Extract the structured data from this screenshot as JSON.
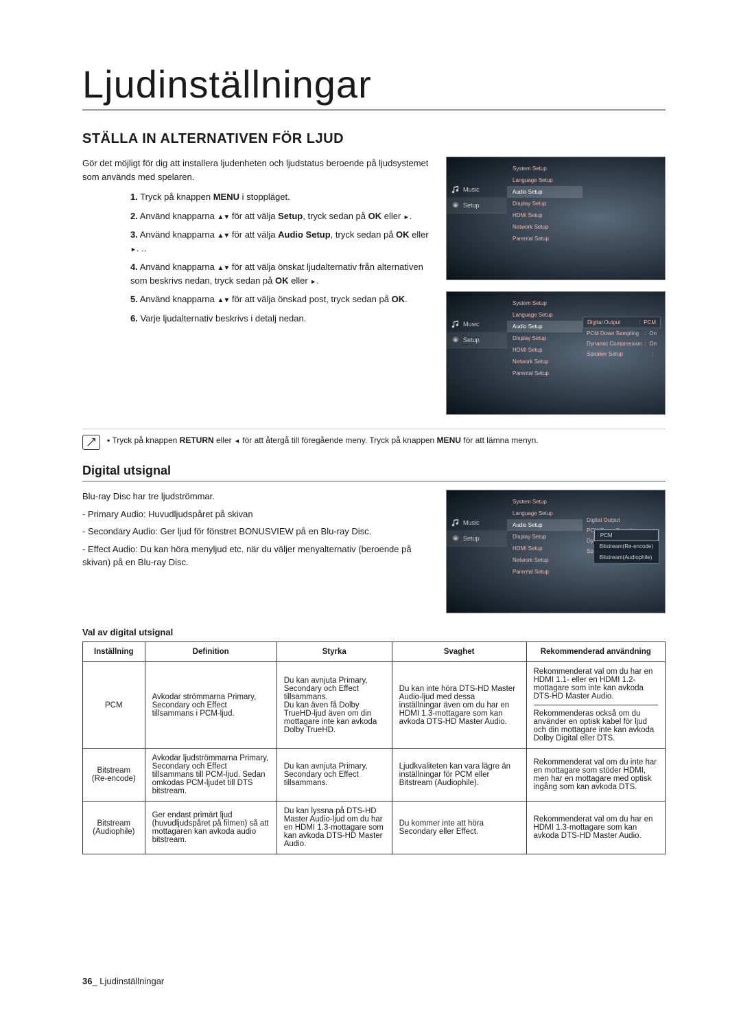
{
  "page": {
    "title": "Ljudinställningar",
    "section_header": "STÄLLA IN ALTERNATIVEN FÖR LJUD",
    "intro": "Gör det möjligt för dig att installera ljudenheten och ljudstatus beroende på ljudsystemet som används med spelaren.",
    "steps": [
      {
        "n": "1.",
        "a": "Tryck på knappen ",
        "b": "MENU",
        "c": " i stoppläget."
      },
      {
        "n": "2.",
        "a": "Använd knapparna ",
        "mid": " för att välja ",
        "b": "Setup",
        "c": ", tryck sedan på ",
        "d": "OK",
        "e": " eller "
      },
      {
        "n": "3.",
        "a": "Använd knapparna ",
        "mid": " för att välja ",
        "b": "Audio Setup",
        "c": ", tryck sedan på ",
        "d": "OK",
        "e": " eller ",
        "tail": " .."
      },
      {
        "n": "4.",
        "a": "Använd knapparna ",
        "mid": " för att välja önskat ljudalternativ från alternativen som beskrivs nedan, tryck sedan på ",
        "d": "OK",
        "e": " eller "
      },
      {
        "n": "5.",
        "a": "Använd knapparna ",
        "mid": " för att välja önskad post, tryck sedan på ",
        "d": "OK",
        "e": "."
      },
      {
        "n": "6.",
        "a": "Varje ljudalternativ beskrivs i detalj nedan."
      }
    ],
    "note": {
      "prefix": "Tryck på knappen ",
      "return": "RETURN",
      "mid": " eller ",
      "rest": " för att återgå till föregående meny. Tryck på knappen ",
      "menu": "MENU",
      "end": " för att lämna menyn."
    },
    "subheading": "Digital utsignal",
    "digital_intro": "Blu-ray Disc har tre ljudströmmar.",
    "digital_items": [
      "- Primary Audio: Huvudljudspåret på skivan",
      "- Secondary Audio: Ger ljud för fönstret BONUSVIEW på en Blu-ray Disc.",
      "- Effect Audio: Du kan höra menyljud etc. när du väljer menyalternativ (beroende på skivan) på en Blu-ray Disc."
    ],
    "table_caption": "Val av digital utsignal",
    "table": {
      "headers": [
        "Inställning",
        "Definition",
        "Styrka",
        "Svaghet",
        "Rekommenderad användning"
      ],
      "rows": [
        {
          "setting": "PCM",
          "definition": "Avkodar strömmarna Primary, Secondary och Effect tillsammans i PCM-ljud.",
          "strength": "Du kan avnjuta Primary, Secondary och Effect tillsammans.\nDu kan även få Dolby TrueHD-ljud även om din mottagare inte kan avkoda Dolby TrueHD.",
          "weakness": "Du kan inte höra DTS-HD Master Audio-ljud med dessa inställningar även om du har en HDMI 1.3-mottagare som kan avkoda DTS-HD Master Audio.",
          "rec1": "Rekommenderat val om du har en HDMI 1.1- eller en HDMI 1.2-mottagare som inte kan avkoda DTS-HD Master Audio.",
          "rec2": "Rekommenderas också om du använder en optisk kabel för ljud och din mottagare inte kan avkoda Dolby Digital eller DTS."
        },
        {
          "setting": "Bitstream (Re-encode)",
          "definition": "Avkodar ljudströmmarna Primary, Secondary och Effect tillsammans till PCM-ljud. Sedan omkodas PCM-ljudet till DTS bitstream.",
          "strength": "Du kan avnjuta Primary, Secondary och Effect tillsammans.",
          "weakness": "Ljudkvaliteten kan vara lägre än inställningar för PCM eller Bitstream (Audiophile).",
          "rec": "Rekommenderat val om du inte har en mottagare som stöder HDMI, men har en mottagare med optisk ingång som kan avkoda DTS."
        },
        {
          "setting": "Bitstream (Audiophile)",
          "definition": "Ger endast primärt ljud (huvudljudspåret på filmen) så att mottagaren kan avkoda audio bitstream.",
          "strength": "Du kan lyssna på DTS-HD Master Audio-ljud om du har en HDMI 1.3-mottagare som kan avkoda DTS-HD Master Audio.",
          "weakness": "Du kommer inte att höra Secondary eller Effect.",
          "rec": "Rekommenderat val om du har en HDMI 1.3-mottagare som kan avkoda DTS-HD Master Audio."
        }
      ]
    },
    "footer_page": "36",
    "footer_label": "_ Ljudinställningar"
  },
  "screens": {
    "sidebar": [
      {
        "icon": "music",
        "label": "Music"
      },
      {
        "icon": "gear",
        "label": "Setup"
      }
    ],
    "menu_main": {
      "items": [
        "System Setup",
        "Language Setup",
        "Audio Setup",
        "Display Setup",
        "HDMI Setup",
        "Network Setup",
        "Parental Setup"
      ],
      "highlight": "Audio Setup"
    },
    "menu_audio": {
      "right": [
        {
          "k": "Digital Output",
          "v": "PCM",
          "boxed": true
        },
        {
          "k": "PCM Down Sampling",
          "v": "On"
        },
        {
          "k": "Dynamic Compression",
          "v": "On"
        },
        {
          "k": "Speaker Setup",
          "v": ""
        }
      ]
    },
    "dropdown": {
      "items": [
        "PCM",
        "Bitstream(Re-encode)",
        "Bitstream(Audiophile)"
      ],
      "selected": "PCM"
    }
  }
}
